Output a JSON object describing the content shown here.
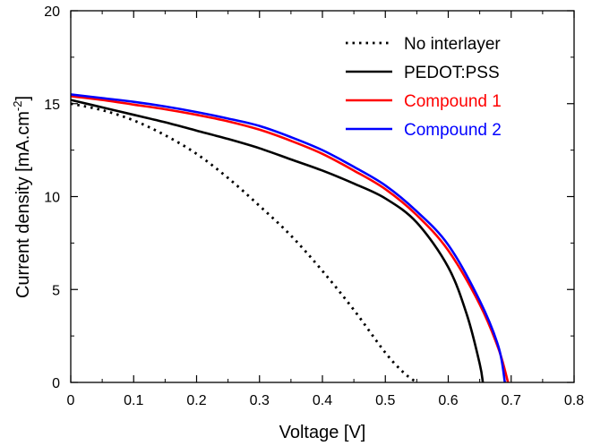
{
  "chart_data": {
    "type": "line",
    "title": "",
    "xlabel": "Voltage [V]",
    "ylabel_main": "Current density [mA.cm",
    "ylabel_sup": "-2",
    "ylabel_close": "]",
    "xlim": [
      0,
      0.8
    ],
    "ylim": [
      0,
      20
    ],
    "xticks": [
      "0",
      "0.1",
      "0.2",
      "0.3",
      "0.4",
      "0.5",
      "0.6",
      "0.7",
      "0.8"
    ],
    "yticks": [
      "0",
      "5",
      "10",
      "15",
      "20"
    ],
    "grid": false,
    "legend_position": "top-right",
    "series": [
      {
        "name": "No interlayer",
        "color": "#000000",
        "style": "dotted",
        "legend_text_color": "#000000",
        "x": [
          0,
          0.05,
          0.1,
          0.15,
          0.2,
          0.25,
          0.3,
          0.35,
          0.4,
          0.45,
          0.5,
          0.53,
          0.55
        ],
        "y": [
          15.0,
          14.65,
          14.1,
          13.3,
          12.3,
          11.0,
          9.5,
          7.9,
          6.0,
          3.9,
          1.6,
          0.5,
          0
        ]
      },
      {
        "name": "PEDOT:PSS",
        "color": "#000000",
        "style": "solid",
        "legend_text_color": "#000000",
        "x": [
          0,
          0.05,
          0.1,
          0.15,
          0.2,
          0.25,
          0.3,
          0.35,
          0.4,
          0.45,
          0.5,
          0.55,
          0.6,
          0.63,
          0.65,
          0.655
        ],
        "y": [
          15.2,
          14.8,
          14.4,
          14.0,
          13.55,
          13.1,
          12.6,
          12.0,
          11.4,
          10.7,
          9.9,
          8.6,
          6.2,
          3.6,
          1.0,
          0
        ]
      },
      {
        "name": "Compound 1",
        "color": "#ff0000",
        "style": "solid",
        "legend_text_color": "#ff0000",
        "x": [
          0,
          0.05,
          0.1,
          0.15,
          0.2,
          0.25,
          0.3,
          0.35,
          0.4,
          0.45,
          0.5,
          0.55,
          0.6,
          0.65,
          0.68,
          0.695
        ],
        "y": [
          15.4,
          15.2,
          14.95,
          14.7,
          14.4,
          14.05,
          13.6,
          13.0,
          12.3,
          11.4,
          10.4,
          9.0,
          7.1,
          4.2,
          1.8,
          0
        ]
      },
      {
        "name": "Compound 2",
        "color": "#0000ff",
        "style": "solid",
        "legend_text_color": "#0000ff",
        "x": [
          0,
          0.05,
          0.1,
          0.15,
          0.2,
          0.25,
          0.3,
          0.35,
          0.4,
          0.45,
          0.5,
          0.55,
          0.6,
          0.65,
          0.68,
          0.69
        ],
        "y": [
          15.5,
          15.3,
          15.1,
          14.85,
          14.55,
          14.2,
          13.8,
          13.2,
          12.5,
          11.6,
          10.6,
          9.2,
          7.4,
          4.4,
          1.9,
          0
        ]
      }
    ]
  }
}
